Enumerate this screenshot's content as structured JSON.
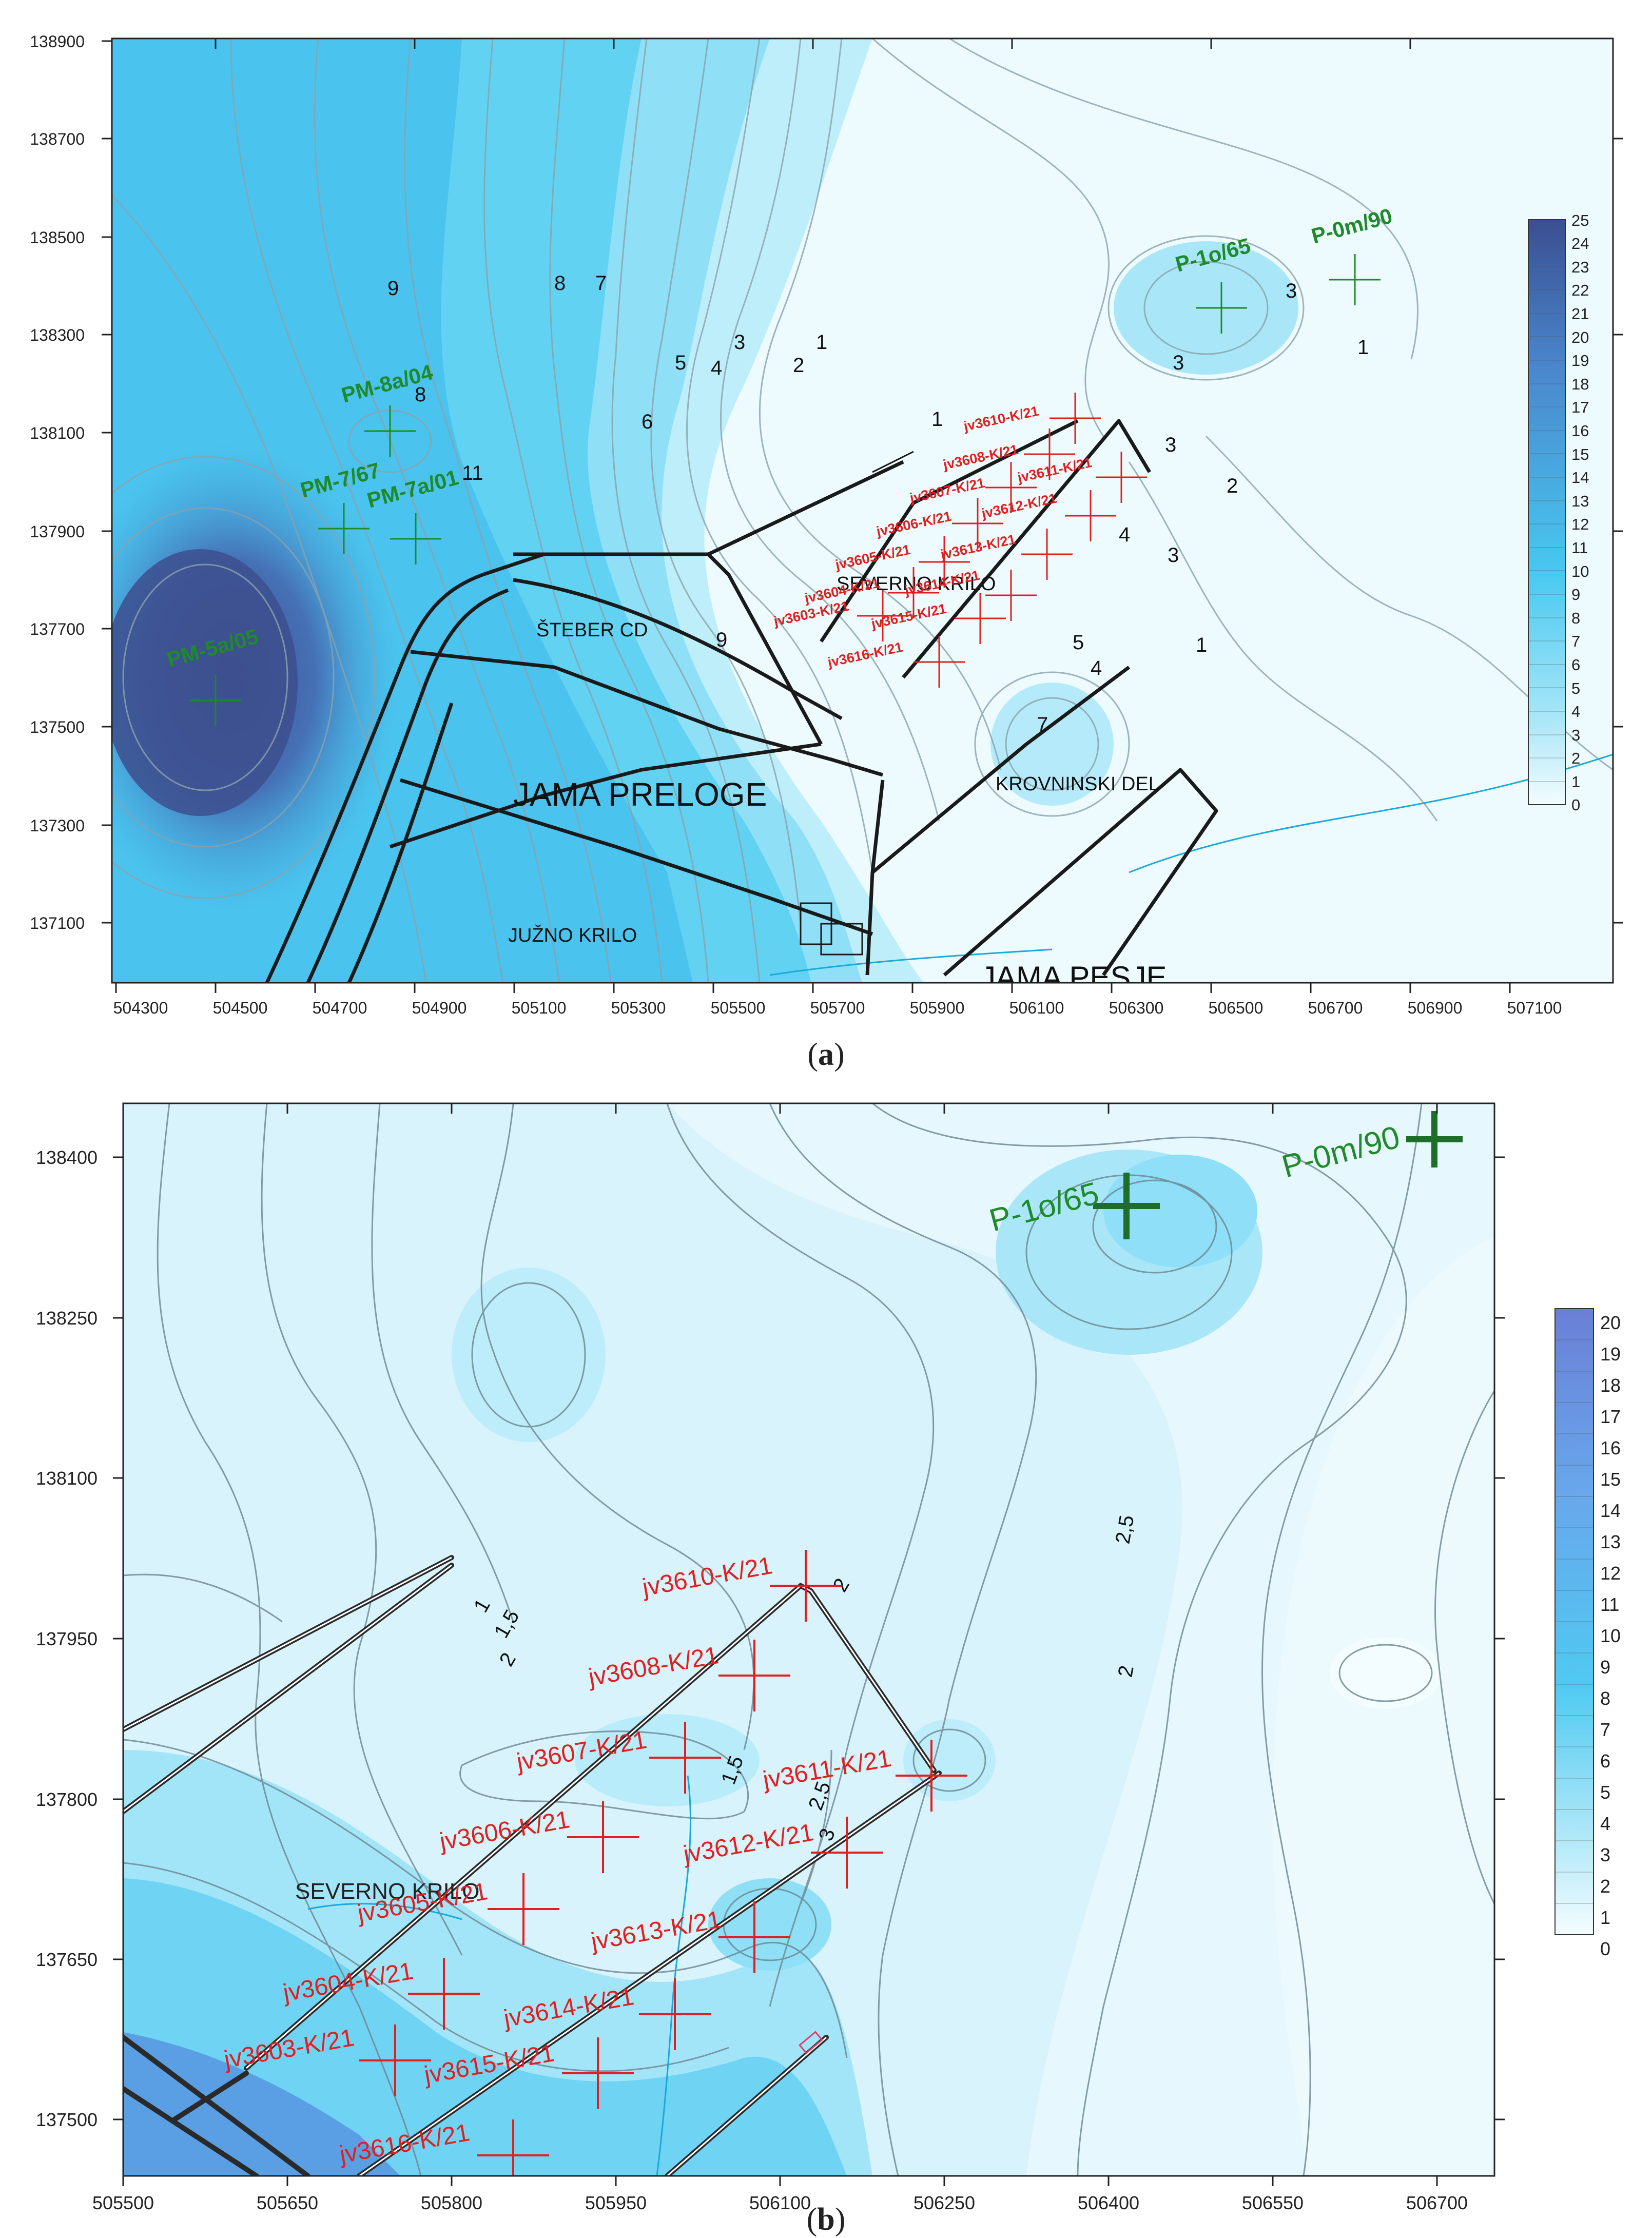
{
  "colors": {
    "deep": "#3e5f9e",
    "mid": "#46c6ee",
    "light": "#d8f3fb",
    "pale": "#eefbfe",
    "contour": "#8aa2ad",
    "tunnel": "#1a1a1a",
    "borehole_red": "#e02020",
    "well_green": "#1e8a2a",
    "stream": "#1aa8d8"
  },
  "panel_a": {
    "caption": "a",
    "x_ticks": [
      "504300",
      "504500",
      "504700",
      "504900",
      "505100",
      "505300",
      "505500",
      "505700",
      "505900",
      "506100",
      "506300",
      "506500",
      "506700",
      "506900",
      "507100"
    ],
    "y_ticks": [
      "138900",
      "138700",
      "138500",
      "138300",
      "138100",
      "137900",
      "137700",
      "137500",
      "137300",
      "137100"
    ],
    "legend": [
      "25",
      "24",
      "23",
      "22",
      "21",
      "20",
      "19",
      "18",
      "17",
      "16",
      "15",
      "14",
      "13",
      "12",
      "11",
      "10",
      "9",
      "8",
      "7",
      "6",
      "5",
      "4",
      "3",
      "2",
      "1",
      "0"
    ],
    "area_labels": [
      "JAMA PRELOGE",
      "ŠTEBER CD",
      "SEVERNO KRILO",
      "KROVNINSKI DEL",
      "JUŽNO KRILO",
      "JAMA PESJE"
    ],
    "wells": [
      "PM-8a/04",
      "PM-7/67",
      "PM-7a/01",
      "PM-5a/05",
      "P-1o/65",
      "P-0m/90"
    ],
    "boreholes": [
      "jv3610-K/21",
      "jv3608-K/21",
      "jv3611-K/21",
      "jv3607-K/21",
      "jv3606-K/21",
      "jv3612-K/21",
      "jv3605-K/21",
      "jv3613-K/21",
      "jv3604-K/21",
      "jv3614-K/21",
      "jv3603-K/21",
      "jv3615-K/21",
      "jv3616-K/21"
    ],
    "contour_labels": [
      "9",
      "8",
      "7",
      "3",
      "1",
      "5",
      "4",
      "2",
      "6",
      "8",
      "11",
      "1",
      "3",
      "3",
      "1",
      "2",
      "3",
      "4",
      "3",
      "1",
      "5",
      "4",
      "7",
      "9"
    ]
  },
  "panel_b": {
    "caption": "b",
    "x_ticks": [
      "505500",
      "505650",
      "505800",
      "505950",
      "506100",
      "506250",
      "506400",
      "506550",
      "506700"
    ],
    "y_ticks": [
      "138400",
      "138250",
      "138100",
      "137950",
      "137800",
      "137650",
      "137500"
    ],
    "legend": [
      "20",
      "19",
      "18",
      "17",
      "16",
      "15",
      "14",
      "13",
      "12",
      "11",
      "10",
      "9",
      "8",
      "7",
      "6",
      "5",
      "4",
      "3",
      "2",
      "1",
      "0"
    ],
    "area_labels": [
      "SEVERNO KRILO"
    ],
    "wells": [
      "P-1o/65",
      "P-0m/90"
    ],
    "boreholes": [
      "jv3610-K/21",
      "jv3608-K/21",
      "jv3611-K/21",
      "jv3607-K/21",
      "jv3606-K/21",
      "jv3612-K/21",
      "jv3605-K/21",
      "jv3613-K/21",
      "jv3604-K/21",
      "jv3614-K/21",
      "jv3603-K/21",
      "jv3615-K/21",
      "jv3616-K/21"
    ],
    "contour_labels": [
      "1",
      "1,5",
      "2",
      "2",
      "2,5",
      "2",
      "1,5",
      "2,5",
      "3"
    ]
  }
}
